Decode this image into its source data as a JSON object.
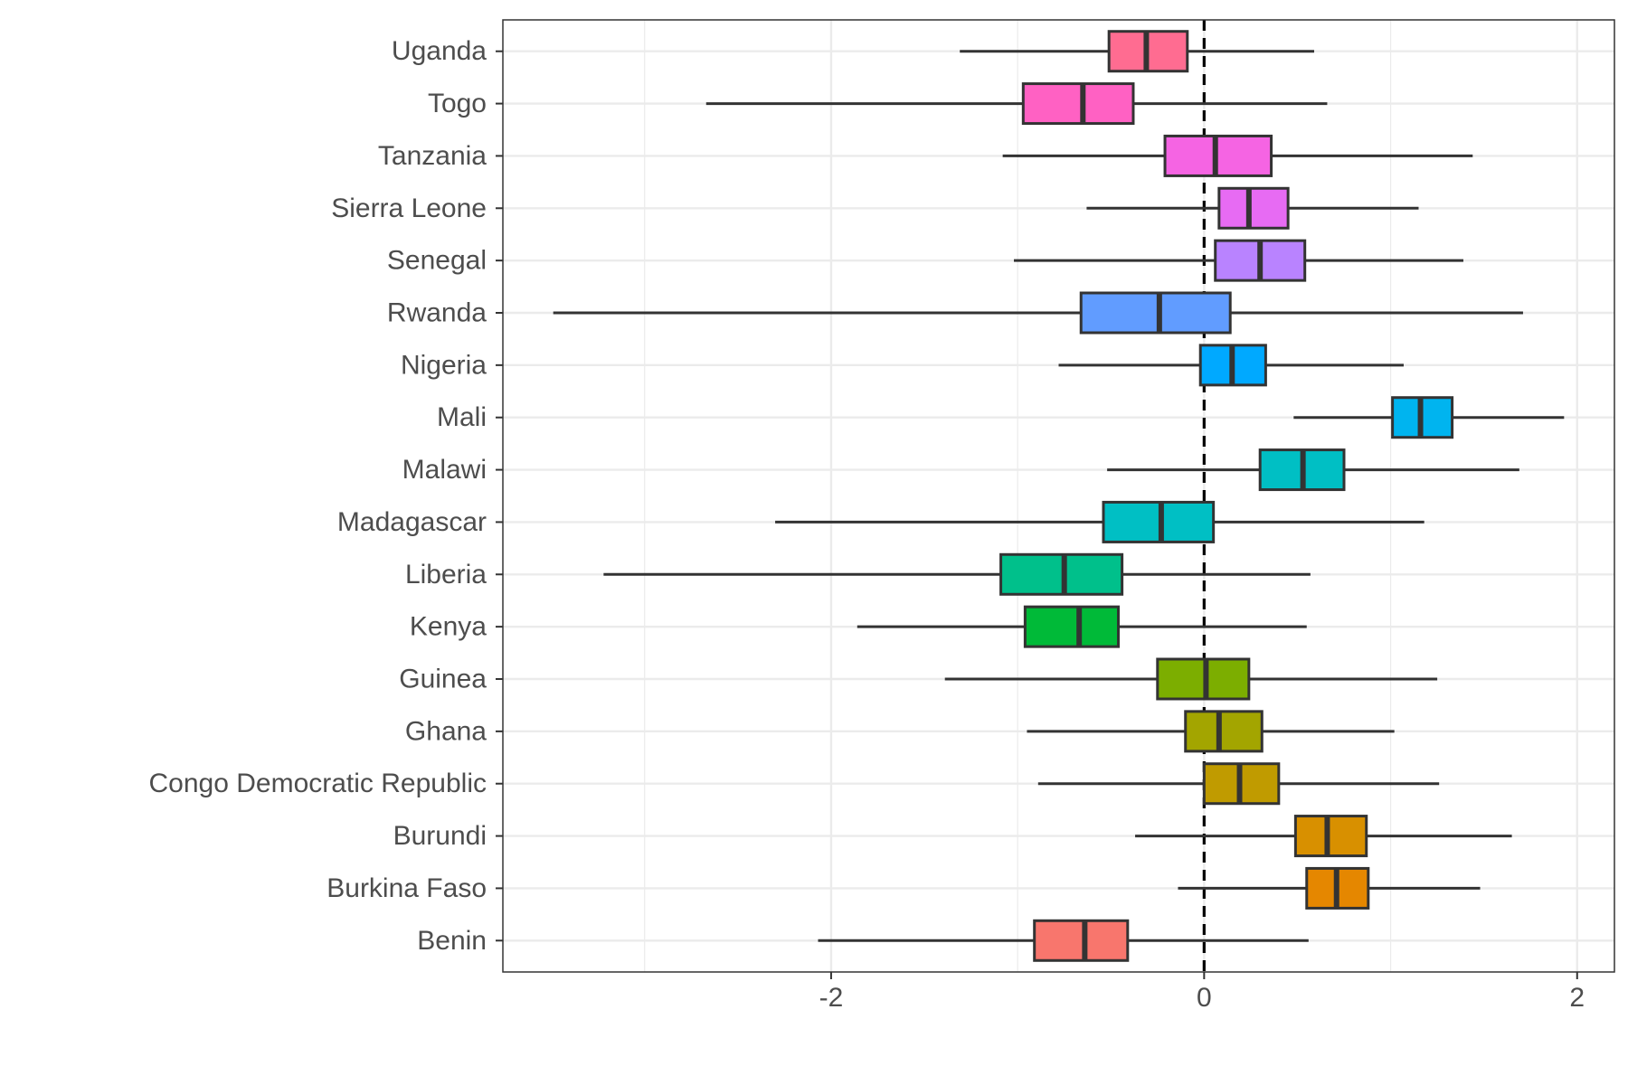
{
  "chart_data": {
    "type": "boxplot",
    "orientation": "horizontal",
    "title": "",
    "xlabel": "",
    "ylabel": "",
    "xlim": [
      -3.76,
      2.2
    ],
    "x_ticks": [
      -2,
      0,
      2
    ],
    "x_tick_labels": [
      "-2",
      "0",
      "2"
    ],
    "reference_line": {
      "x": 0,
      "style": "dashed"
    },
    "grid": true,
    "legend": "none",
    "categories": [
      "Benin",
      "Burkina Faso",
      "Burundi",
      "Congo Democratic Republic",
      "Ghana",
      "Guinea",
      "Kenya",
      "Liberia",
      "Madagascar",
      "Malawi",
      "Mali",
      "Nigeria",
      "Rwanda",
      "Senegal",
      "Sierra Leone",
      "Tanzania",
      "Togo",
      "Uganda"
    ],
    "series": [
      {
        "category": "Benin",
        "min": -2.07,
        "q1": -0.91,
        "median": -0.64,
        "q3": -0.41,
        "max": 0.56,
        "color": "#F8766D"
      },
      {
        "category": "Burkina Faso",
        "min": -0.14,
        "q1": 0.55,
        "median": 0.71,
        "q3": 0.88,
        "max": 1.48,
        "color": "#E58700"
      },
      {
        "category": "Burundi",
        "min": -0.37,
        "q1": 0.49,
        "median": 0.66,
        "q3": 0.87,
        "max": 1.65,
        "color": "#D89000"
      },
      {
        "category": "Congo Democratic Republic",
        "min": -0.89,
        "q1": 0.0,
        "median": 0.19,
        "q3": 0.4,
        "max": 1.26,
        "color": "#C09B00"
      },
      {
        "category": "Ghana",
        "min": -0.95,
        "q1": -0.1,
        "median": 0.08,
        "q3": 0.31,
        "max": 1.02,
        "color": "#A3A500"
      },
      {
        "category": "Guinea",
        "min": -1.39,
        "q1": -0.25,
        "median": 0.01,
        "q3": 0.24,
        "max": 1.25,
        "color": "#7CAE00"
      },
      {
        "category": "Kenya",
        "min": -1.86,
        "q1": -0.96,
        "median": -0.67,
        "q3": -0.46,
        "max": 0.55,
        "color": "#00BA38"
      },
      {
        "category": "Liberia",
        "min": -3.22,
        "q1": -1.09,
        "median": -0.75,
        "q3": -0.44,
        "max": 0.57,
        "color": "#00C08B"
      },
      {
        "category": "Madagascar",
        "min": -2.3,
        "q1": -0.54,
        "median": -0.23,
        "q3": 0.05,
        "max": 1.18,
        "color": "#00BFC4"
      },
      {
        "category": "Malawi",
        "min": -0.52,
        "q1": 0.3,
        "median": 0.53,
        "q3": 0.75,
        "max": 1.69,
        "color": "#00BFC4"
      },
      {
        "category": "Mali",
        "min": 0.48,
        "q1": 1.01,
        "median": 1.16,
        "q3": 1.33,
        "max": 1.93,
        "color": "#00B4EF"
      },
      {
        "category": "Nigeria",
        "min": -0.78,
        "q1": -0.02,
        "median": 0.15,
        "q3": 0.33,
        "max": 1.07,
        "color": "#00A9FF"
      },
      {
        "category": "Rwanda",
        "min": -3.49,
        "q1": -0.66,
        "median": -0.24,
        "q3": 0.14,
        "max": 1.71,
        "color": "#619CFF"
      },
      {
        "category": "Senegal",
        "min": -1.02,
        "q1": 0.06,
        "median": 0.3,
        "q3": 0.54,
        "max": 1.39,
        "color": "#B983FF"
      },
      {
        "category": "Sierra Leone",
        "min": -0.63,
        "q1": 0.08,
        "median": 0.24,
        "q3": 0.45,
        "max": 1.15,
        "color": "#E76BF3"
      },
      {
        "category": "Tanzania",
        "min": -1.08,
        "q1": -0.21,
        "median": 0.06,
        "q3": 0.36,
        "max": 1.44,
        "color": "#F564E3"
      },
      {
        "category": "Togo",
        "min": -2.67,
        "q1": -0.97,
        "median": -0.65,
        "q3": -0.38,
        "max": 0.66,
        "color": "#FF61C3"
      },
      {
        "category": "Uganda",
        "min": -1.31,
        "q1": -0.51,
        "median": -0.31,
        "q3": -0.09,
        "max": 0.59,
        "color": "#FF6C91"
      }
    ]
  }
}
